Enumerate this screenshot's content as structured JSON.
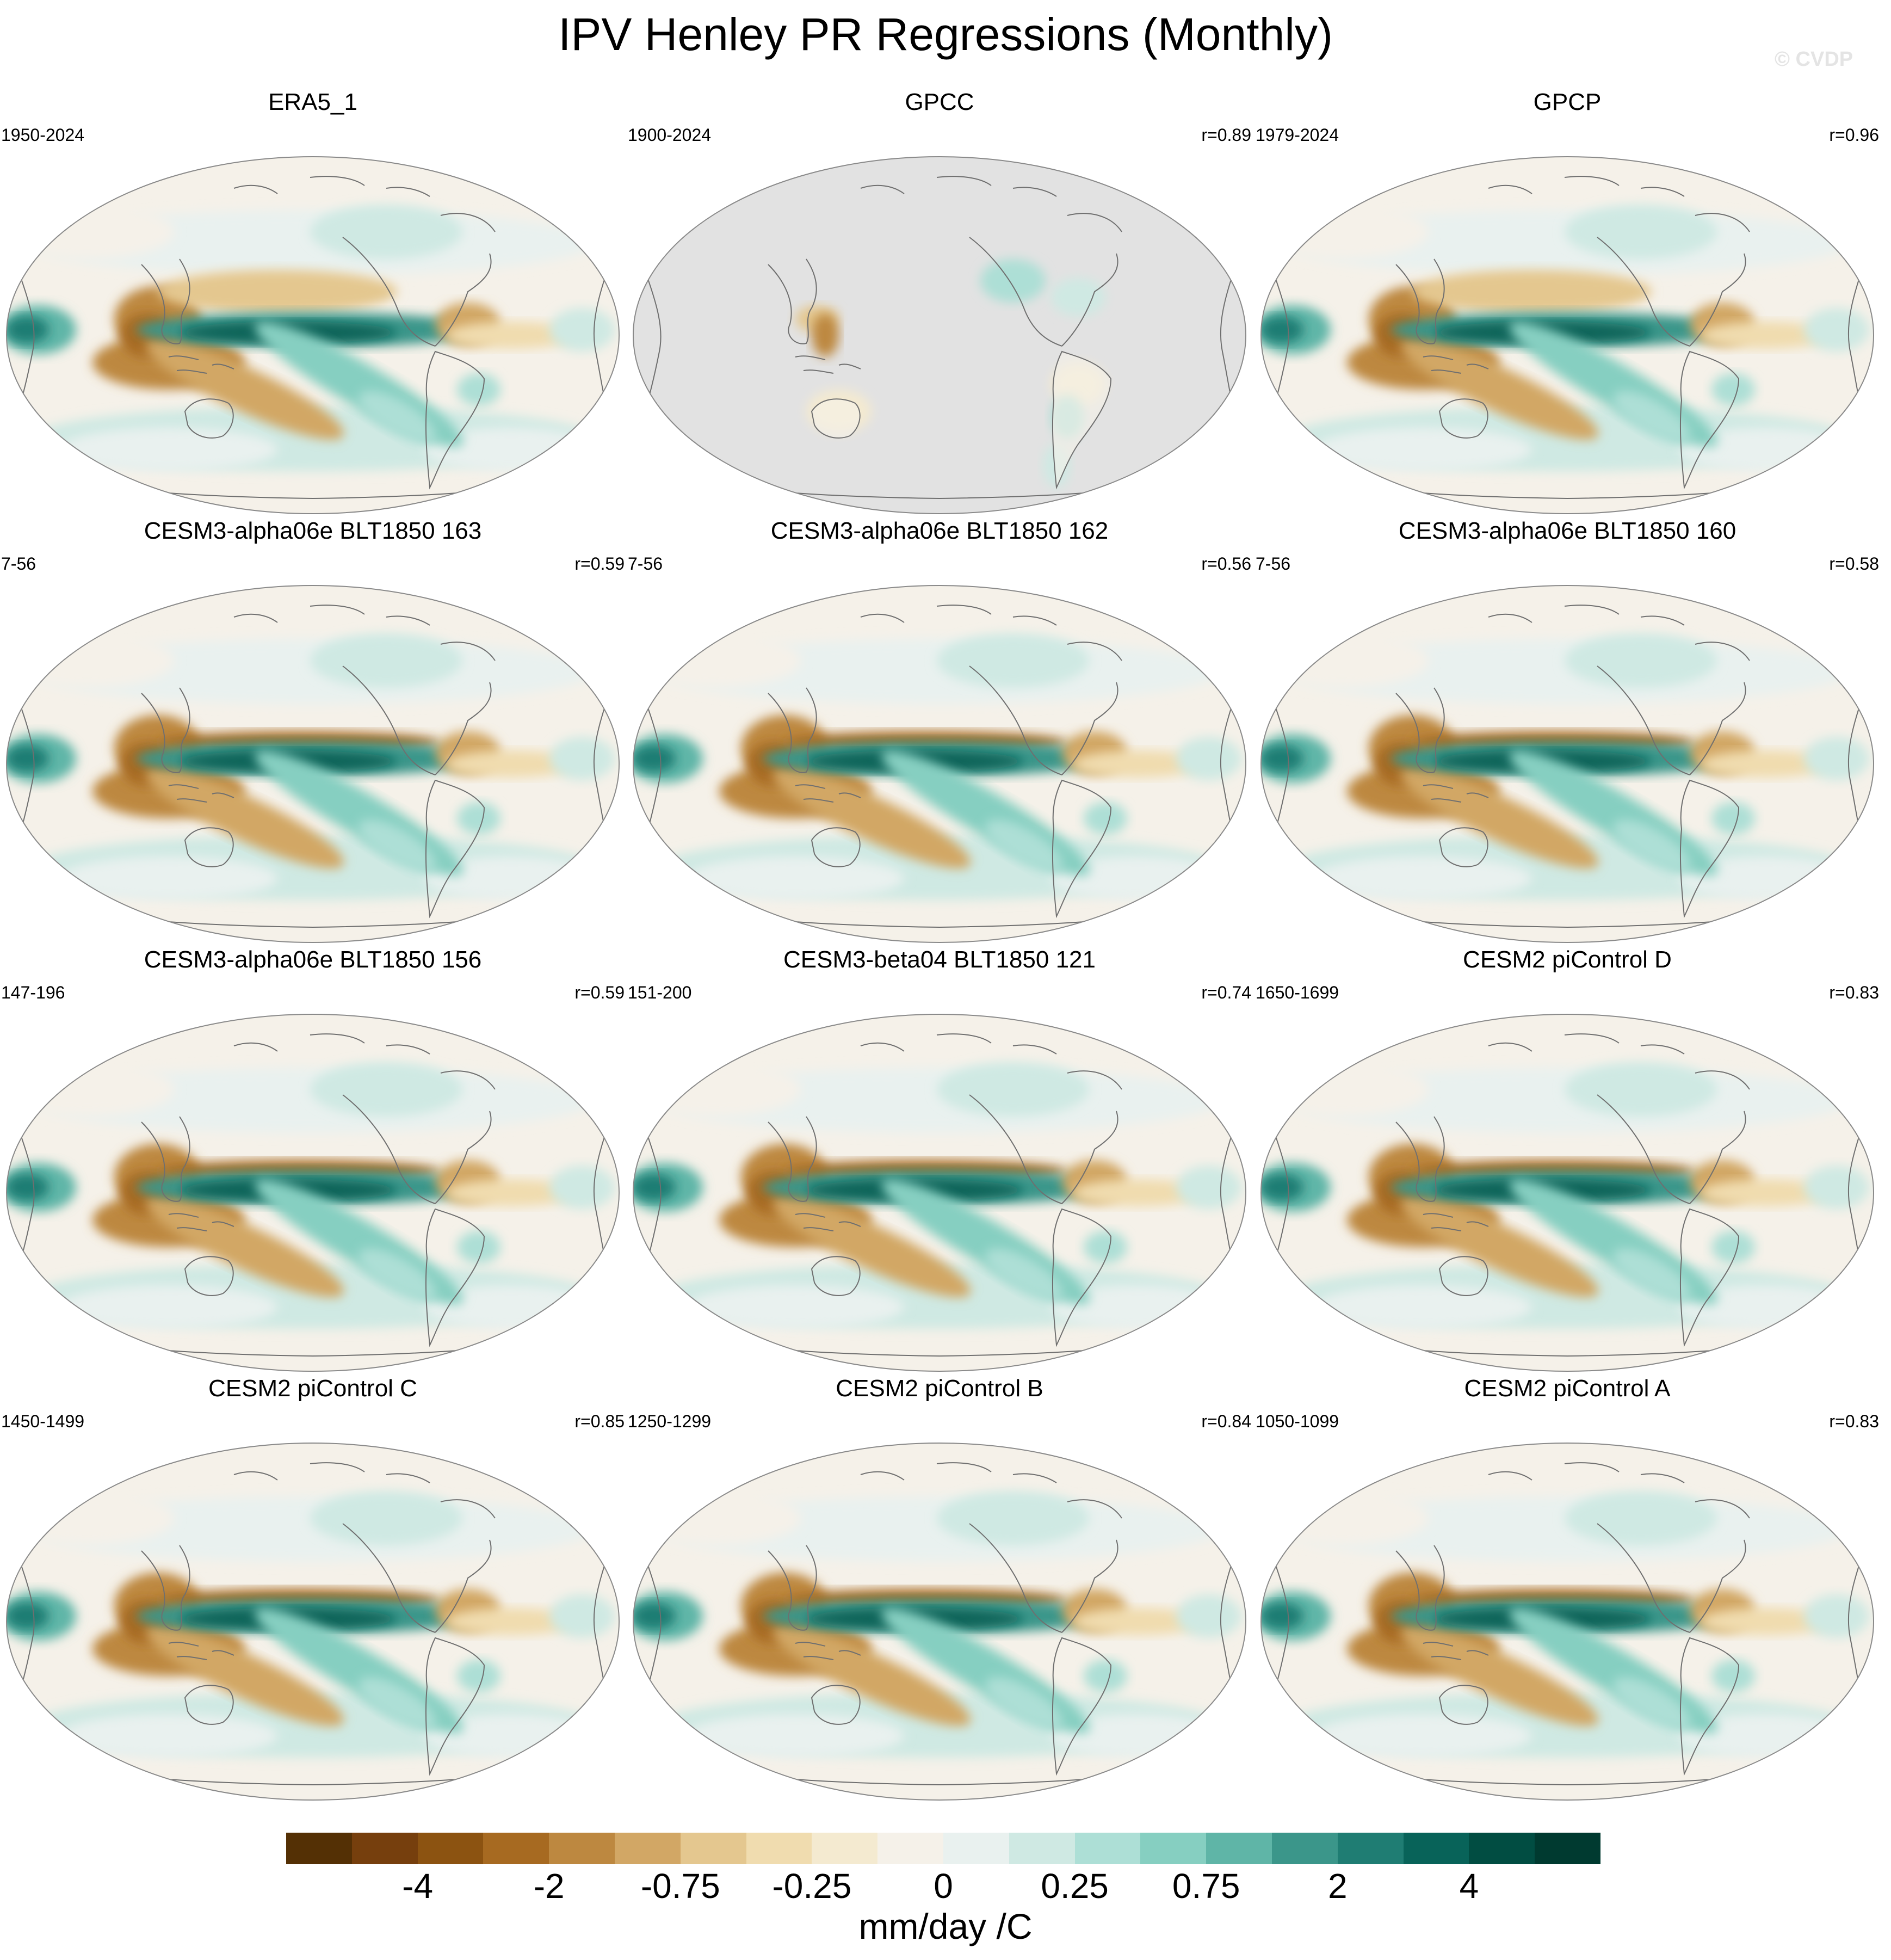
{
  "title": "IPV Henley PR Regressions (Monthly)",
  "watermark": "© CVDP",
  "colors": {
    "ocean_empty": "#e2e2e2",
    "coast": "#6f6f6f",
    "neutral": "#f5f1e9"
  },
  "panels": [
    {
      "title": "ERA5_1",
      "period": "1950-2024",
      "corr": "",
      "variant": "obs"
    },
    {
      "title": "GPCC",
      "period": "1900-2024",
      "corr": "r=0.89",
      "variant": "land"
    },
    {
      "title": "GPCP",
      "period": "1979-2024",
      "corr": "r=0.96",
      "variant": "obs"
    },
    {
      "title": "CESM3-alpha06e BLT1850 163",
      "period": "7-56",
      "corr": "r=0.59",
      "variant": "model"
    },
    {
      "title": "CESM3-alpha06e BLT1850 162",
      "period": "7-56",
      "corr": "r=0.56",
      "variant": "model"
    },
    {
      "title": "CESM3-alpha06e BLT1850 160",
      "period": "7-56",
      "corr": "r=0.58",
      "variant": "model"
    },
    {
      "title": "CESM3-alpha06e BLT1850 156",
      "period": "147-196",
      "corr": "r=0.59",
      "variant": "model"
    },
    {
      "title": "CESM3-beta04 BLT1850 121",
      "period": "151-200",
      "corr": "r=0.74",
      "variant": "model"
    },
    {
      "title": "CESM2 piControl D",
      "period": "1650-1699",
      "corr": "r=0.83",
      "variant": "model"
    },
    {
      "title": "CESM2 piControl C",
      "period": "1450-1499",
      "corr": "r=0.85",
      "variant": "model"
    },
    {
      "title": "CESM2 piControl B",
      "period": "1250-1299",
      "corr": "r=0.84",
      "variant": "model"
    },
    {
      "title": "CESM2 piControl A",
      "period": "1050-1099",
      "corr": "r=0.83",
      "variant": "model"
    }
  ],
  "colorbar": {
    "colors": [
      "#543005",
      "#763f0d",
      "#8c5311",
      "#a76a21",
      "#bd8840",
      "#d2a765",
      "#e4c78f",
      "#f0dcaf",
      "#f4ead0",
      "#f5f1e9",
      "#e9f1ef",
      "#cfe9e3",
      "#addfd6",
      "#86cfc1",
      "#5fb5a7",
      "#3b968a",
      "#1f7d73",
      "#086359",
      "#014d42",
      "#003a30"
    ],
    "labels": [
      {
        "text": "-4",
        "boundary": 2
      },
      {
        "text": "-2",
        "boundary": 4
      },
      {
        "text": "-0.75",
        "boundary": 6
      },
      {
        "text": "-0.25",
        "boundary": 8
      },
      {
        "text": "0",
        "boundary": 10
      },
      {
        "text": "0.25",
        "boundary": 12
      },
      {
        "text": "0.75",
        "boundary": 14
      },
      {
        "text": "2",
        "boundary": 16
      },
      {
        "text": "4",
        "boundary": 18
      }
    ],
    "unit": "mm/day /C"
  }
}
